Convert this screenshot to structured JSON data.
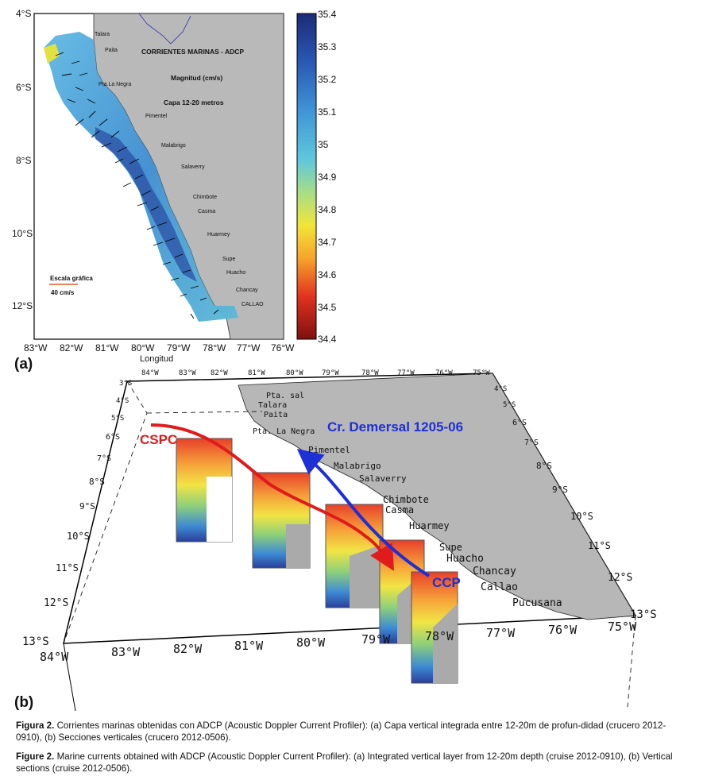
{
  "panel_a": {
    "label": "(a)",
    "title": "CORRIENTES MARINAS - ADCP",
    "subtitle": "Magnitud (cm/s)",
    "layer": "Capa 12-20 metros",
    "scale_label": "Escala gráfica",
    "scale_value": "40 cm/s",
    "xlabel": "Longitud",
    "lat_ticks": [
      "4°S",
      "6°S",
      "8°S",
      "10°S",
      "12°S"
    ],
    "lon_ticks": [
      "83°W",
      "82°W",
      "81°W",
      "80°W",
      "79°W",
      "78°W",
      "77°W",
      "76°W"
    ],
    "colorbar_ticks": [
      "35.4",
      "35.3",
      "35.2",
      "35.1",
      "35",
      "34.9",
      "34.8",
      "34.7",
      "34.6",
      "34.5",
      "34.4"
    ],
    "towns": [
      "Talara",
      "Paita",
      "Pta.La Negra",
      "Pimentel",
      "Malabrigo",
      "Salaverry",
      "Chimbote",
      "Casma",
      "Huarmey",
      "Supe",
      "Huacho",
      "Chancay",
      "CALLAO"
    ]
  },
  "panel_b": {
    "label": "(b)",
    "top_lon_ticks": [
      "84°W",
      "83°W",
      "82°W",
      "81°W",
      "80°W",
      "79°W",
      "78°W",
      "77°W",
      "76°W",
      "75°W"
    ],
    "top_lat_ticks_left": [
      "3°S",
      "4°S",
      "5°S",
      "6°S",
      "7°S",
      "8°S",
      "9°S"
    ],
    "lat_ticks_left": [
      "10°S",
      "11°S",
      "12°S",
      "13°S"
    ],
    "lat_ticks_right": [
      "4°S",
      "5°S",
      "6°S",
      "7°S",
      "8°S",
      "9°S",
      "10°S",
      "11°S",
      "12°S",
      "13°S"
    ],
    "lon_ticks_front": [
      "84°W",
      "83°W",
      "82°W",
      "81°W",
      "80°W",
      "79°W",
      "78°W",
      "77°W",
      "76°W",
      "75°W"
    ],
    "towns": [
      "Pta. sal",
      "Talara",
      "Paita",
      "Pta. La Negra",
      "Pimentel",
      "Malabrigo",
      "Salaverry",
      "Chimbote",
      "Casma",
      "Huarmey",
      "Supe",
      "Huacho",
      "Chancay",
      "Callao",
      "Pucusana"
    ],
    "cruise_label": "Cr. Demersal 1205-06",
    "current_cspc": "CSPC",
    "current_ccp": "CCP",
    "colors": {
      "cspc": "#e01b1b",
      "ccp": "#1f2fd6",
      "land": "#b7b7b7"
    }
  },
  "caption": {
    "es_bold": "Figura 2.",
    "es_text": "Corrientes marinas obtenidas con ADCP (Acoustic Doppler Current Profiler):  (a) Capa vertical integrada entre 12-20m de profun-didad (crucero 2012-0910), (b) Secciones verticales (crucero 2012-0506).",
    "en_bold": "Figure 2.",
    "en_text": "Marine currents obtained with ADCP (Acoustic Doppler Current Profiler): (a) Integrated vertical layer from 12-20m depth (cruise 2012-0910), (b) Vertical sections (cruise 2012-0506)."
  }
}
